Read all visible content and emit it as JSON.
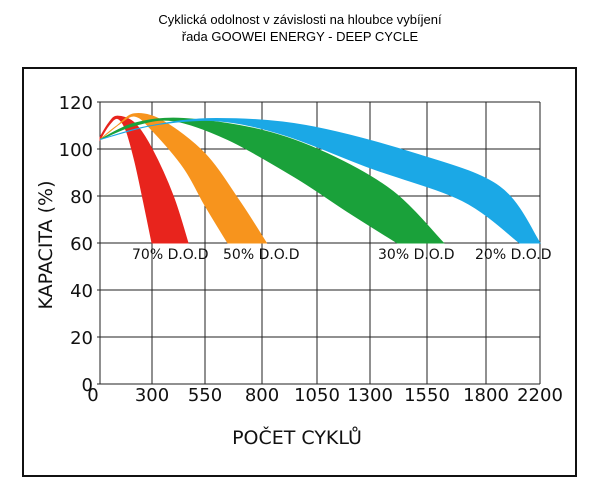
{
  "chart_data": {
    "type": "area",
    "title": "Cyklická odolnost v závislosti na hloubce vybíjení",
    "subtitle": "řada GOOWEI ENERGY - DEEP CYCLE",
    "xlabel": "POČET CYKLŮ",
    "ylabel": "KAPACITA (%)",
    "x_ticks": [
      "0",
      "300",
      "550",
      "800",
      "1050",
      "1300",
      "1550",
      "1800",
      "2200"
    ],
    "y_ticks": [
      "0",
      "20",
      "40",
      "60",
      "80",
      "100",
      "120"
    ],
    "ylim": [
      0,
      120
    ],
    "grid": true,
    "series": [
      {
        "name": "70% D.O.D",
        "color": "#e8241d",
        "upper": [
          [
            0,
            105
          ],
          [
            50,
            111
          ],
          [
            100,
            114
          ],
          [
            200,
            111
          ],
          [
            300,
            100
          ],
          [
            400,
            80
          ],
          [
            470,
            60
          ]
        ],
        "lower": [
          [
            0,
            104
          ],
          [
            50,
            110
          ],
          [
            100,
            113
          ],
          [
            150,
            108
          ],
          [
            200,
            95
          ],
          [
            250,
            78
          ],
          [
            300,
            60
          ]
        ]
      },
      {
        "name": "50% D.O.D",
        "color": "#f7941d",
        "upper": [
          [
            0,
            104
          ],
          [
            100,
            110
          ],
          [
            200,
            115
          ],
          [
            350,
            112
          ],
          [
            550,
            98
          ],
          [
            700,
            78
          ],
          [
            820,
            60
          ]
        ],
        "lower": [
          [
            0,
            104
          ],
          [
            100,
            110
          ],
          [
            200,
            114
          ],
          [
            300,
            108
          ],
          [
            450,
            92
          ],
          [
            550,
            76
          ],
          [
            650,
            60
          ]
        ]
      },
      {
        "name": "30% D.O.D",
        "color": "#1aa13a",
        "upper": [
          [
            0,
            104
          ],
          [
            200,
            111
          ],
          [
            450,
            113
          ],
          [
            800,
            108
          ],
          [
            1100,
            98
          ],
          [
            1400,
            82
          ],
          [
            1620,
            60
          ]
        ],
        "lower": [
          [
            0,
            104
          ],
          [
            200,
            110
          ],
          [
            400,
            112
          ],
          [
            650,
            104
          ],
          [
            950,
            88
          ],
          [
            1200,
            73
          ],
          [
            1420,
            60
          ]
        ]
      },
      {
        "name": "20% D.O.D",
        "color": "#1ba8e6",
        "upper": [
          [
            0,
            104
          ],
          [
            300,
            110
          ],
          [
            600,
            113
          ],
          [
            1000,
            110
          ],
          [
            1500,
            98
          ],
          [
            1900,
            84
          ],
          [
            2200,
            60
          ]
        ],
        "lower": [
          [
            0,
            104
          ],
          [
            300,
            110
          ],
          [
            600,
            112
          ],
          [
            900,
            106
          ],
          [
            1300,
            92
          ],
          [
            1700,
            78
          ],
          [
            2050,
            60
          ]
        ]
      }
    ]
  }
}
